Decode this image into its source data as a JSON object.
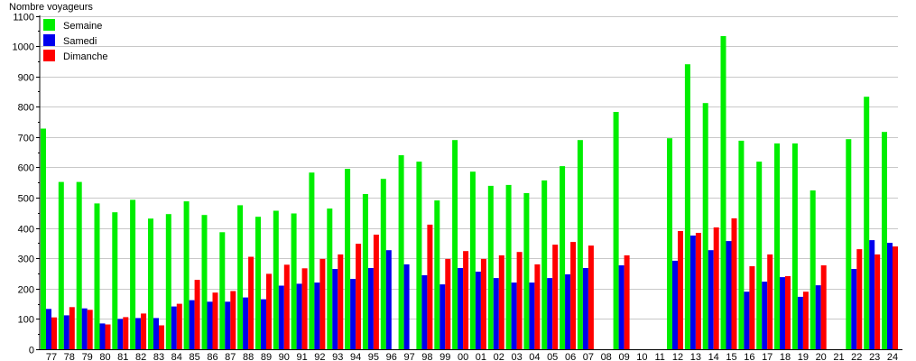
{
  "chart_data": {
    "type": "bar",
    "title": "",
    "xlabel": "",
    "ylabel": "Nombre voyageurs",
    "ylim": [
      0,
      1100
    ],
    "yticks": [
      0,
      100,
      200,
      300,
      400,
      500,
      600,
      700,
      800,
      900,
      1000,
      1100
    ],
    "grid": true,
    "legend_position": "top-left",
    "categories": [
      "77",
      "78",
      "79",
      "80",
      "81",
      "82",
      "83",
      "84",
      "85",
      "86",
      "87",
      "88",
      "89",
      "90",
      "91",
      "92",
      "93",
      "94",
      "95",
      "96",
      "97",
      "98",
      "99",
      "00",
      "01",
      "02",
      "03",
      "04",
      "05",
      "06",
      "07",
      "08",
      "09",
      "10",
      "11",
      "12",
      "13",
      "14",
      "15",
      "16",
      "17",
      "18",
      "19",
      "20",
      "21",
      "22",
      "23",
      "24"
    ],
    "series": [
      {
        "name": "Semaine",
        "color": "#00ee00",
        "values": [
          728,
          552,
          552,
          481,
          452,
          493,
          431,
          446,
          488,
          443,
          386,
          475,
          437,
          457,
          448,
          583,
          464,
          595,
          512,
          562,
          640,
          619,
          491,
          690,
          586,
          539,
          542,
          515,
          557,
          604,
          690,
          null,
          783,
          null,
          null,
          696,
          940,
          812,
          1033,
          688,
          619,
          679,
          679,
          524,
          null,
          693,
          833,
          717
        ]
      },
      {
        "name": "Samedi",
        "color": "#0000ee",
        "values": [
          133,
          112,
          135,
          85,
          100,
          103,
          103,
          141,
          162,
          157,
          157,
          171,
          165,
          210,
          216,
          220,
          265,
          232,
          268,
          327,
          280,
          244,
          214,
          268,
          256,
          235,
          220,
          220,
          235,
          247,
          268,
          null,
          277,
          null,
          null,
          292,
          375,
          327,
          357,
          190,
          223,
          238,
          173,
          211,
          null,
          265,
          360,
          351
        ]
      },
      {
        "name": "Dimanche",
        "color": "#ff0000",
        "values": [
          105,
          139,
          130,
          82,
          106,
          118,
          79,
          150,
          229,
          187,
          192,
          305,
          249,
          279,
          267,
          298,
          313,
          348,
          378,
          null,
          null,
          411,
          298,
          324,
          298,
          310,
          321,
          280,
          345,
          354,
          342,
          null,
          310,
          null,
          null,
          390,
          384,
          402,
          432,
          274,
          313,
          241,
          190,
          277,
          null,
          330,
          313,
          339
        ]
      }
    ]
  }
}
